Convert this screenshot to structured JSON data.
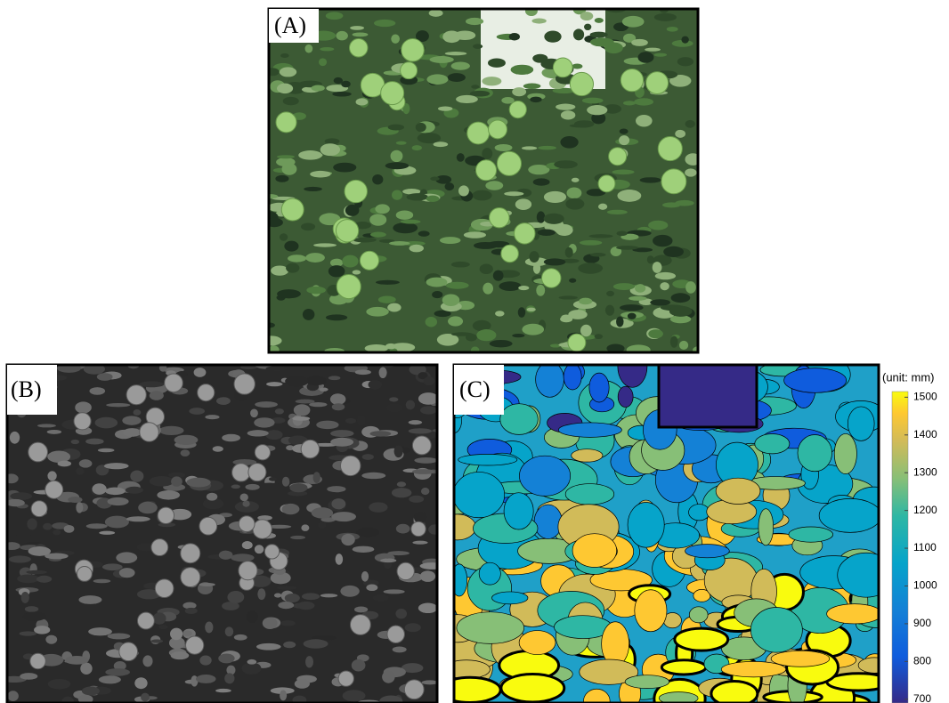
{
  "panels": [
    {
      "label": "(A)"
    },
    {
      "label": "(B)"
    },
    {
      "label": "(C)"
    }
  ],
  "colorbar": {
    "label": "(unit: mm)",
    "lim": [
      690,
      1515
    ],
    "ticks": [
      700,
      800,
      900,
      1000,
      1100,
      1200,
      1300,
      1400,
      1500
    ]
  }
}
